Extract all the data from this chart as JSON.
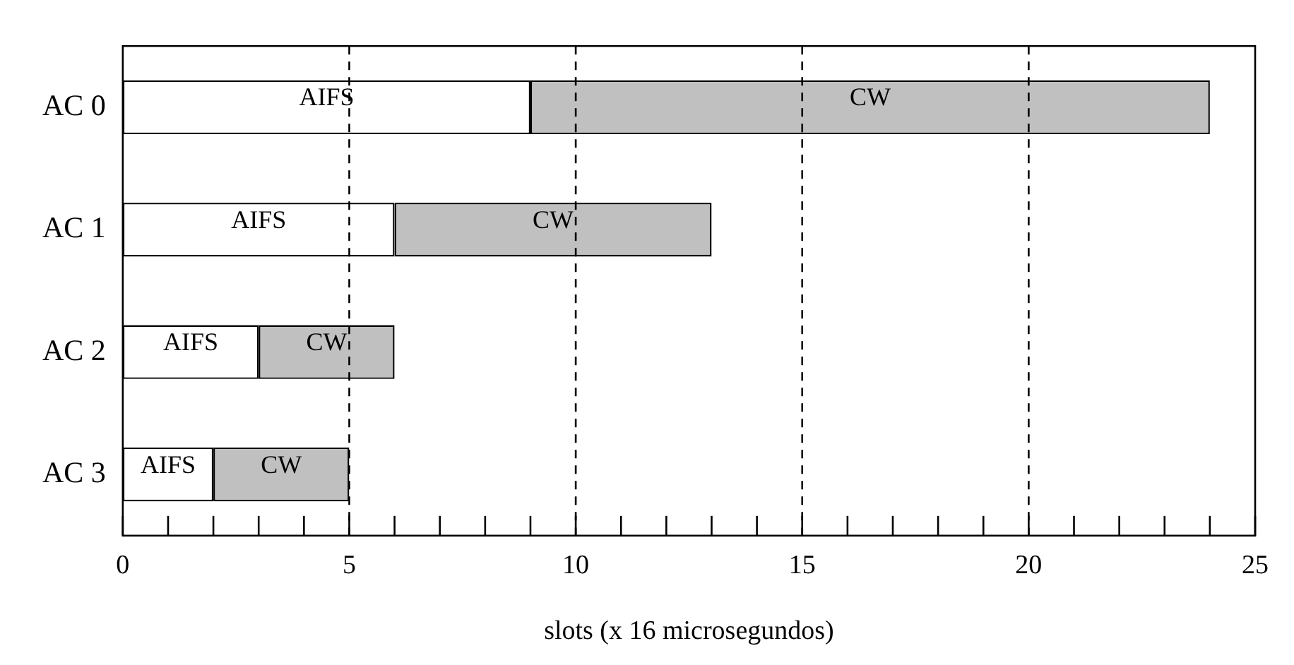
{
  "chart_data": {
    "type": "bar",
    "orientation": "horizontal",
    "stacked": true,
    "xlabel": "slots (x 16 microsegundos)",
    "categories": [
      "AC 0",
      "AC 1",
      "AC 2",
      "AC 3"
    ],
    "series": [
      {
        "name": "AIFS",
        "color": "#ffffff",
        "values": [
          9,
          6,
          3,
          2
        ]
      },
      {
        "name": "CW",
        "color": "#c0c0c0",
        "values": [
          15,
          7,
          3,
          3
        ]
      }
    ],
    "xlim": [
      0,
      25
    ],
    "xticks": [
      0,
      {
        "value": 1,
        "label": null
      },
      {
        "value": 2,
        "label": null
      },
      {
        "value": 3,
        "label": null
      },
      {
        "value": 4,
        "label": null
      },
      5,
      {
        "value": 6,
        "label": null
      },
      {
        "value": 7,
        "label": null
      },
      {
        "value": 8,
        "label": null
      },
      {
        "value": 9,
        "label": null
      },
      10,
      {
        "value": 11,
        "label": null
      },
      {
        "value": 12,
        "label": null
      },
      {
        "value": 13,
        "label": null
      },
      {
        "value": 14,
        "label": null
      },
      15,
      {
        "value": 16,
        "label": null
      },
      {
        "value": 17,
        "label": null
      },
      {
        "value": 18,
        "label": null
      },
      {
        "value": 19,
        "label": null
      },
      20,
      {
        "value": 21,
        "label": null
      },
      {
        "value": 22,
        "label": null
      },
      {
        "value": 23,
        "label": null
      },
      {
        "value": 24,
        "label": null
      },
      25
    ],
    "ref_lines": [
      {
        "axis": "x",
        "value": 5,
        "line_style": "dashed"
      },
      {
        "axis": "x",
        "value": 10,
        "line_style": "dashed"
      },
      {
        "axis": "x",
        "value": 15,
        "line_style": "dashed"
      },
      {
        "axis": "x",
        "value": 20,
        "line_style": "dashed"
      }
    ],
    "grid": false,
    "legend": false
  }
}
